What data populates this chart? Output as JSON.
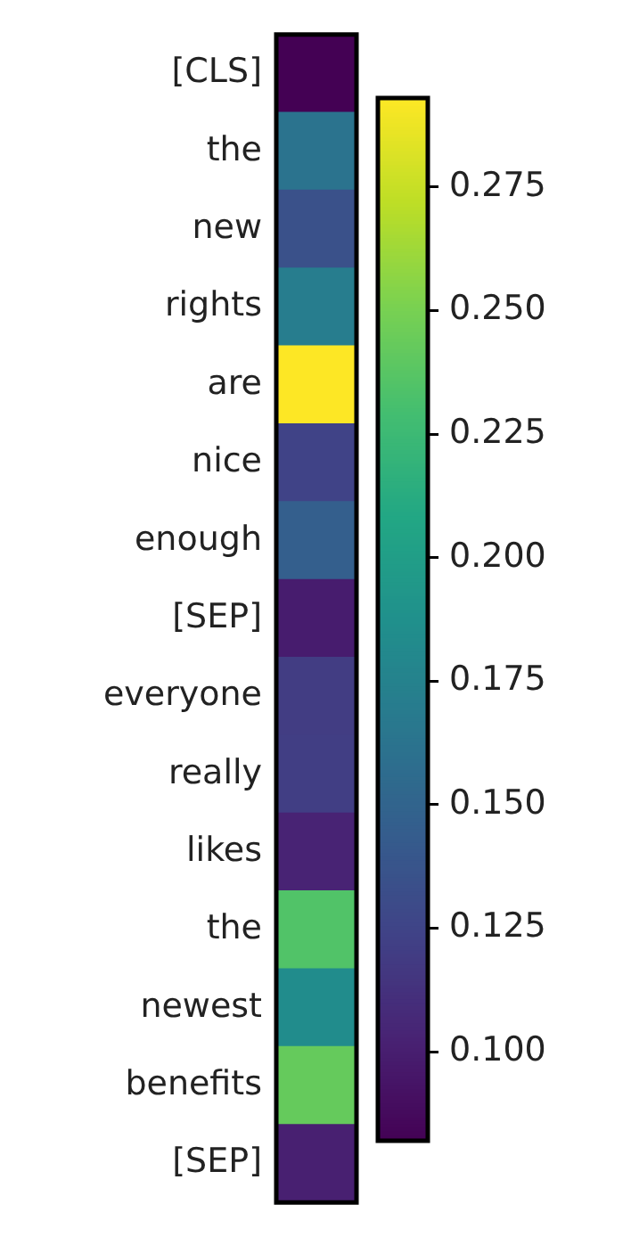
{
  "chart_data": {
    "type": "heatmap",
    "categories": [
      null
    ],
    "y_categories": [
      "[CLS]",
      "the",
      "new",
      "rights",
      "are",
      "nice",
      "enough",
      "[SEP]",
      "everyone",
      "really",
      "likes",
      "the",
      "newest",
      "benefits",
      "[SEP]"
    ],
    "cells": [
      [
        0.082
      ],
      [
        0.162
      ],
      [
        0.135
      ],
      [
        0.171
      ],
      [
        0.293
      ],
      [
        0.124
      ],
      [
        0.146
      ],
      [
        0.099
      ],
      [
        0.12
      ],
      [
        0.121
      ],
      [
        0.103
      ],
      [
        0.235
      ],
      [
        0.184
      ],
      [
        0.243
      ],
      [
        0.101
      ]
    ],
    "clim": [
      0.082,
      0.293
    ],
    "cticks": [
      {
        "value": 0.1,
        "label": "0.100"
      },
      {
        "value": 0.125,
        "label": "0.125"
      },
      {
        "value": 0.15,
        "label": "0.150"
      },
      {
        "value": 0.175,
        "label": "0.175"
      },
      {
        "value": 0.2,
        "label": "0.200"
      },
      {
        "value": 0.225,
        "label": "0.225"
      },
      {
        "value": 0.25,
        "label": "0.250"
      },
      {
        "value": 0.275,
        "label": "0.275"
      }
    ]
  }
}
